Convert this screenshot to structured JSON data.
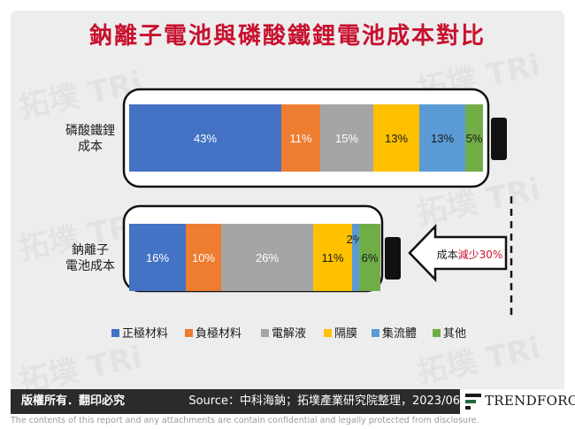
{
  "title": "鈉離子電池與磷酸鐵鋰電池成本對比",
  "watermark": "拓墣 TRi",
  "footer": {
    "rights": "版權所有．翻印必究",
    "source": "Source：中科海鈉；拓墣產業研究院整理，2023/06",
    "logo_text": "TRENDFORCE",
    "disclaimer": "The contents of this report and any attachments are contain confidential and legally protected from disclosure."
  },
  "colors": {
    "title": "#c8102e",
    "positive_electrode": "#4472c4",
    "negative_electrode": "#ed7d31",
    "electrolyte": "#a5a5a5",
    "separator": "#ffc000",
    "current_collector": "#5b9bd5",
    "other": "#70ad47",
    "logo_accent": "#1f6b3a"
  },
  "chart_data": {
    "type": "bar",
    "orientation": "horizontal",
    "stacked": true,
    "unit": "%",
    "categories": [
      "磷酸鐵鋰\n成本",
      "鈉離子\n電池成本"
    ],
    "series": [
      {
        "name": "正極材料",
        "values": [
          43,
          16
        ],
        "labels": [
          "43%",
          "16%"
        ]
      },
      {
        "name": "負極材料",
        "values": [
          11,
          10
        ],
        "labels": [
          "11%",
          "10%"
        ]
      },
      {
        "name": "電解液",
        "values": [
          15,
          26
        ],
        "labels": [
          "15%",
          "26%"
        ]
      },
      {
        "name": "隔膜",
        "values": [
          13,
          11
        ],
        "labels": [
          "13%",
          "11%"
        ]
      },
      {
        "name": "集流體",
        "values": [
          13,
          2
        ],
        "labels": [
          "13%",
          "2%"
        ]
      },
      {
        "name": "其他",
        "values": [
          5,
          6
        ],
        "labels": [
          "5%",
          "6%"
        ]
      }
    ],
    "totals": [
      100,
      70
    ],
    "annotation": {
      "prefix": "成本",
      "highlight": "減少30%"
    },
    "legend_position": "bottom",
    "grid": false
  }
}
